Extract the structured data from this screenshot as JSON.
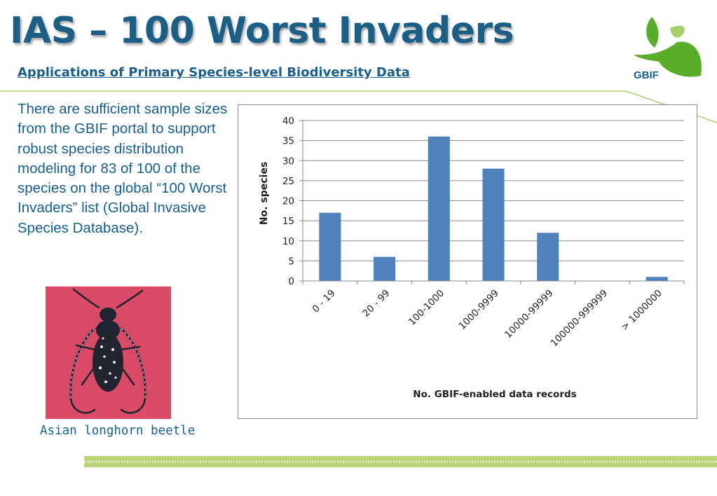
{
  "slide": {
    "title": "IAS – 100 Worst Invaders",
    "subtitle": "Applications of Primary Species-level Biodiversity Data",
    "body_text": "There are sufficient sample sizes from the GBIF portal to support robust species distribution modeling for 83 of 100 of the species on the global “100 Worst Invaders” list (Global Invasive Species Database).",
    "logo_text": "GBIF",
    "photo_caption": "Asian longhorn beetle"
  },
  "colors": {
    "title": "#1b5f86",
    "bar": "#4f81bd",
    "logo_green": "#5aad2b",
    "footer_band": "#bcd57b"
  },
  "chart_data": {
    "type": "bar",
    "categories": [
      "0 - 19",
      "20 - 99",
      "100-1000",
      "1000-9999",
      "10000-99999",
      "100000-999999",
      "> 1000000"
    ],
    "values": [
      17,
      6,
      36,
      28,
      12,
      0,
      1
    ],
    "xlabel": "No. GBIF-enabled data records",
    "ylabel": "No. species",
    "ylim": [
      0,
      40
    ],
    "yticks": [
      0,
      5,
      10,
      15,
      20,
      25,
      30,
      35,
      40
    ],
    "grid": true,
    "legend": "none"
  }
}
